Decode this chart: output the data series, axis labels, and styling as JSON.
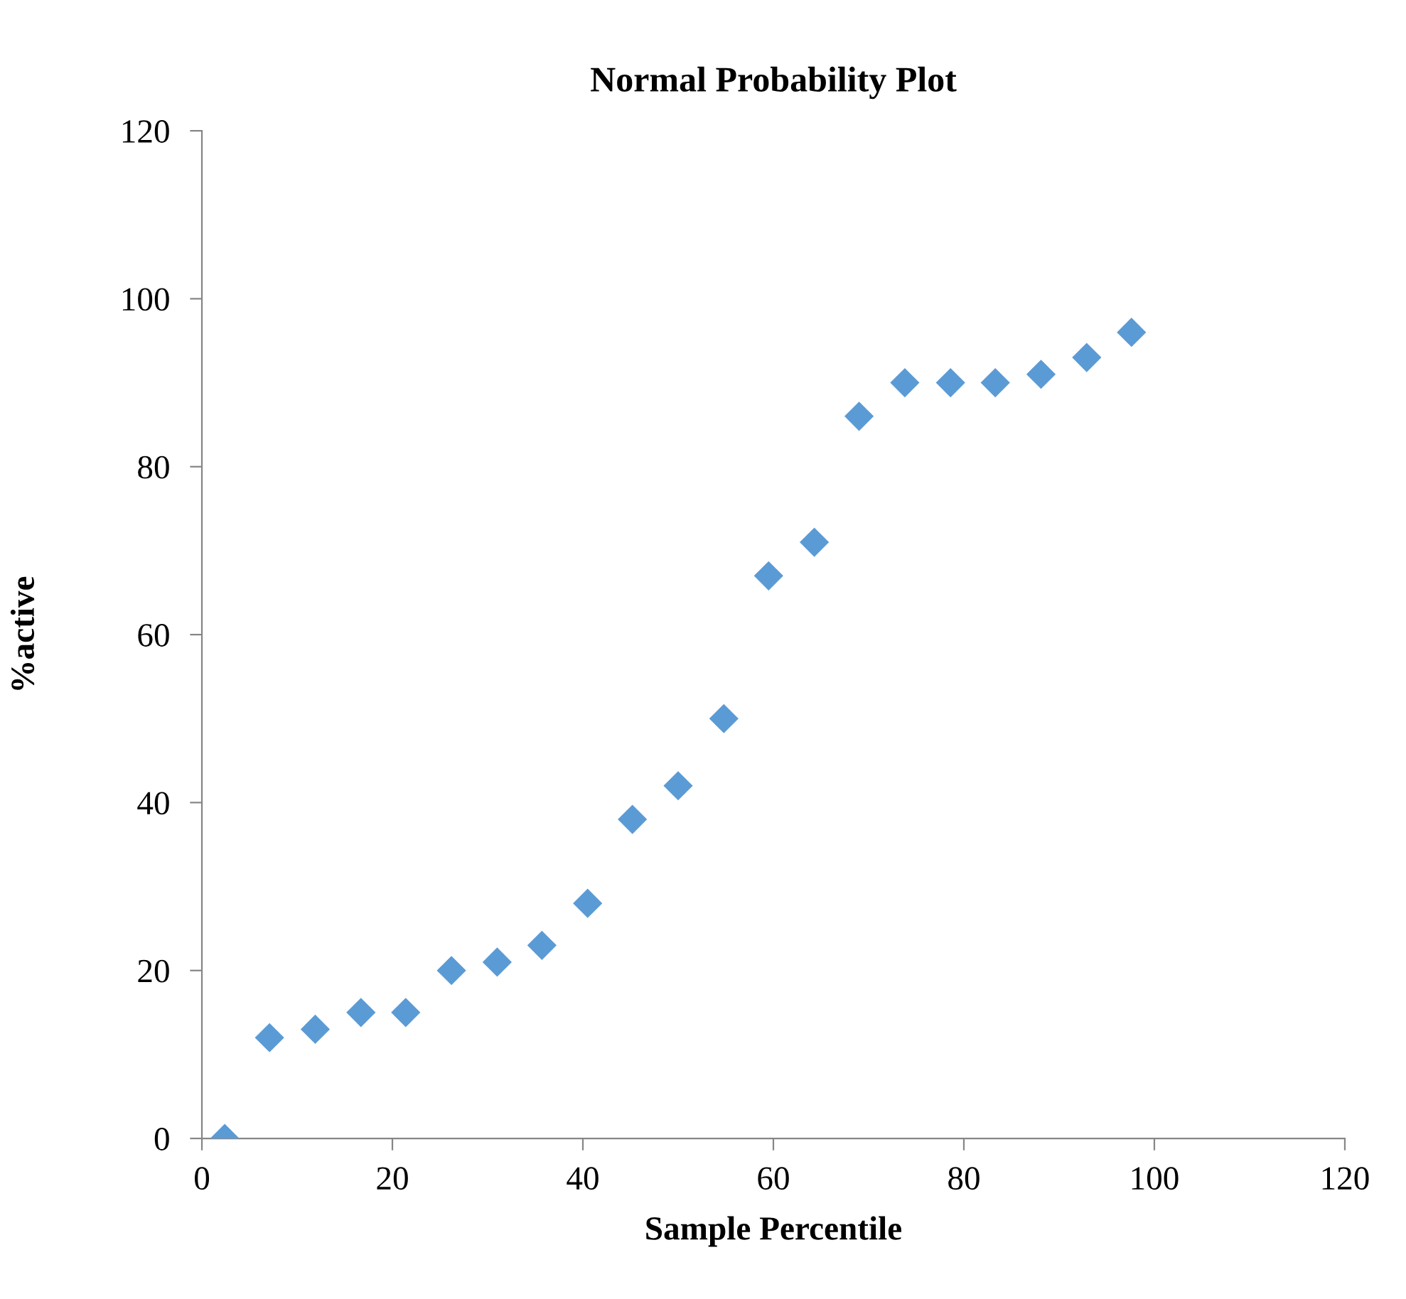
{
  "chart_data": {
    "type": "scatter",
    "title": "Normal Probability Plot",
    "xlabel": "Sample Percentile",
    "ylabel": "%active",
    "x": [
      2.4,
      7.1,
      11.9,
      16.7,
      21.4,
      26.2,
      31.0,
      35.7,
      40.5,
      45.2,
      50.0,
      54.8,
      59.5,
      64.3,
      69.0,
      73.8,
      78.6,
      83.3,
      88.1,
      92.9,
      97.6
    ],
    "series": [
      {
        "color": "#5b9bd5",
        "values": [
          0,
          12,
          13,
          15,
          15,
          20,
          21,
          23,
          28,
          38,
          42,
          50,
          67,
          71,
          86,
          90,
          90,
          90,
          91,
          93,
          96
        ]
      }
    ],
    "xlim": [
      0,
      120
    ],
    "xticks": [
      0,
      20,
      40,
      60,
      80,
      100,
      120
    ],
    "ylim": [
      0,
      120
    ],
    "yticks": [
      0,
      20,
      40,
      60,
      80,
      100,
      120
    ],
    "marker": "diamond",
    "grid": false,
    "legend": false
  }
}
